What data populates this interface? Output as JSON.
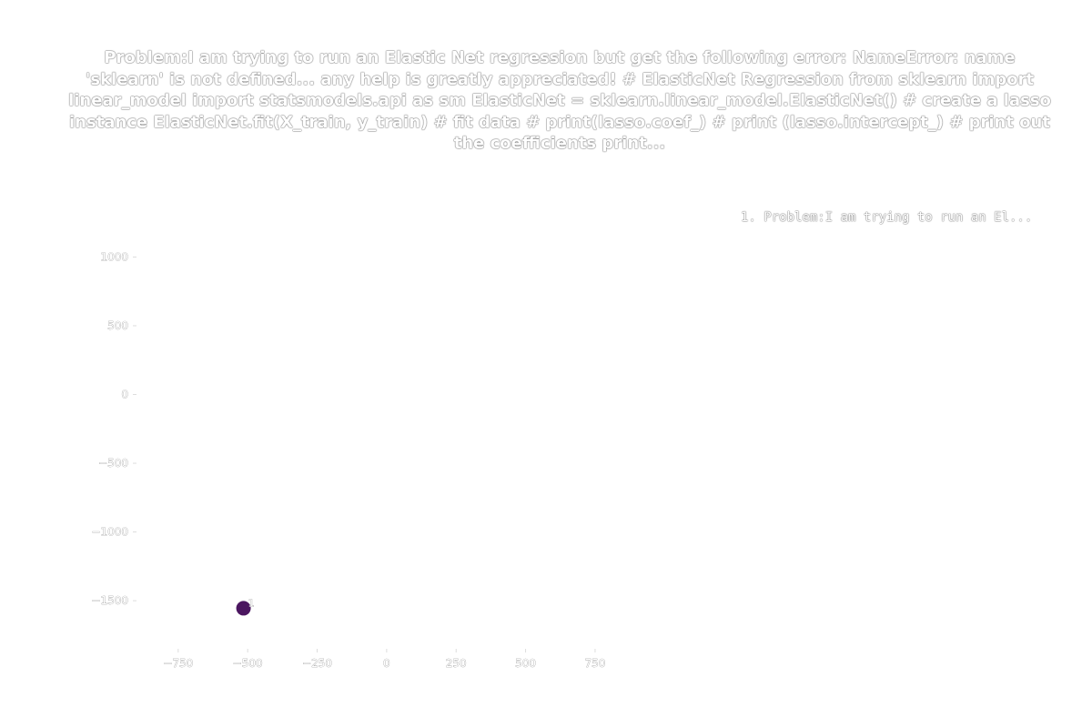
{
  "chart_data": {
    "type": "scatter",
    "title": "Problem:I am trying to run an Elastic Net regression but get the following error: NameError: name 'sklearn' is not defined... any help is greatly appreciated!     # ElasticNet Regression     from sklearn import linear_model     import statsmodels.api as sm     ElasticNet = sklearn.linear_model.ElasticNet() # create a lasso instance     ElasticNet.fit(X_train, y_train) # fit data     # print(lasso.coef_)     # print (lasso.intercept_) # print out the coefficients     print...",
    "xlabel": "",
    "ylabel": "",
    "xlim": [
      -900,
      950
    ],
    "ylim": [
      -1850,
      1400
    ],
    "xticks": [
      -750,
      -500,
      -250,
      0,
      250,
      500,
      750
    ],
    "xtick_labels": [
      "−750",
      "−500",
      "−250",
      "0",
      "250",
      "500",
      "750"
    ],
    "yticks": [
      1000,
      500,
      0,
      -500,
      -1000,
      -1500
    ],
    "ytick_labels": [
      "1000",
      "500",
      "0",
      "−500",
      "−1000",
      "−1500"
    ],
    "grid": false,
    "legend_placement": "top-right",
    "legend": [
      "1. Problem:I am trying to run an El..."
    ],
    "series": [
      {
        "color": "#4b1660",
        "points": [
          {
            "x": -515,
            "y": -1555,
            "label": "1"
          }
        ]
      }
    ]
  }
}
